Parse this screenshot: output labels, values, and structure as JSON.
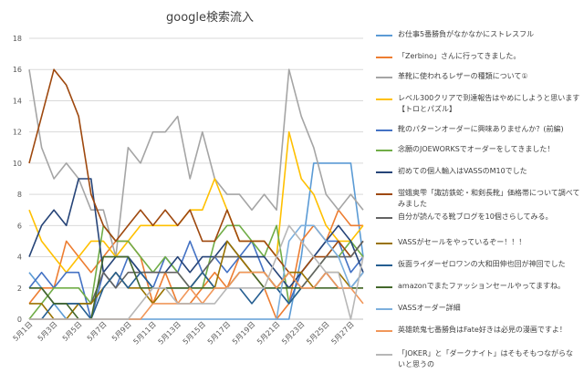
{
  "chart_data": {
    "type": "line",
    "title": "google検索流入",
    "xlabel": "",
    "ylabel": "",
    "ylim": [
      0,
      18
    ],
    "yticks": [
      0,
      2,
      4,
      6,
      8,
      10,
      12,
      14,
      16,
      18
    ],
    "grid": true,
    "legend_position": "right",
    "categories": [
      "5月1日",
      "5月2日",
      "5月3日",
      "5月4日",
      "5月5日",
      "5月6日",
      "5月7日",
      "5月8日",
      "5月9日",
      "5月10日",
      "5月11日",
      "5月12日",
      "5月13日",
      "5月14日",
      "5月15日",
      "5月16日",
      "5月17日",
      "5月18日",
      "5月19日",
      "5月20日",
      "5月21日",
      "5月22日",
      "5月23日",
      "5月24日",
      "5月25日",
      "5月26日",
      "5月27日",
      "5月28日"
    ],
    "x_tick_labels": [
      "5月1日",
      "5月3日",
      "5月5日",
      "5月7日",
      "5月9日",
      "5月11日",
      "5月13日",
      "5月15日",
      "5月17日",
      "5月19日",
      "5月21日",
      "5月23日",
      "5月25日",
      "5月27日"
    ],
    "x_tick_every": 2,
    "series": [
      {
        "name": "お仕事5番勝負がなかなかにストレスフル",
        "color": "#5b9bd5",
        "values": [
          3,
          2,
          1,
          0,
          0,
          0,
          0,
          0,
          0,
          0,
          0,
          0,
          0,
          0,
          0,
          0,
          0,
          0,
          0,
          0,
          0,
          0,
          4,
          10,
          10,
          10,
          10,
          4
        ]
      },
      {
        "name": "「Zerbino」さんに行ってきました。",
        "color": "#ed7d31",
        "values": [
          1,
          2,
          2,
          5,
          4,
          3,
          4,
          5,
          5,
          4,
          1,
          3,
          1,
          1,
          2,
          3,
          2,
          4,
          3,
          2,
          0,
          1,
          5,
          6,
          5,
          7,
          6,
          6
        ]
      },
      {
        "name": "革靴に使われるレザーの種類について①",
        "color": "#a5a5a5",
        "values": [
          16,
          11,
          9,
          10,
          9,
          7,
          7,
          4,
          11,
          10,
          12,
          12,
          13,
          9,
          12,
          9,
          8,
          8,
          7,
          8,
          7,
          16,
          13,
          11,
          8,
          7,
          8,
          7
        ]
      },
      {
        "name": "レベル300クリアで到達報告はやめにしようと思います【トロとパズル】",
        "color": "#ffc000",
        "values": [
          7,
          5,
          4,
          3,
          4,
          5,
          5,
          4,
          5,
          6,
          6,
          6,
          6,
          7,
          7,
          9,
          7,
          5,
          5,
          5,
          4,
          12,
          9,
          8,
          6,
          5,
          5,
          6
        ]
      },
      {
        "name": "靴のパターンオーダーに興味ありませんか？(前編)",
        "color": "#4472c4",
        "values": [
          2,
          3,
          2,
          3,
          3,
          0,
          3,
          2,
          4,
          3,
          2,
          4,
          3,
          5,
          3,
          4,
          3,
          4,
          5,
          3,
          2,
          1,
          3,
          4,
          5,
          5,
          3,
          4
        ]
      },
      {
        "name": "念願のJOEWORKSでオーダーをしてきました！",
        "color": "#70ad47",
        "values": [
          0,
          1,
          2,
          2,
          2,
          1,
          6,
          5,
          5,
          4,
          3,
          4,
          3,
          2,
          2,
          5,
          6,
          6,
          5,
          4,
          6,
          1,
          2,
          3,
          4,
          4,
          5,
          4
        ]
      },
      {
        "name": "初めての個人輸入はVASSのM10でした",
        "color": "#264478",
        "values": [
          4,
          6,
          7,
          6,
          9,
          9,
          3,
          4,
          4,
          3,
          3,
          3,
          4,
          3,
          4,
          4,
          5,
          4,
          4,
          4,
          3,
          2,
          3,
          4,
          5,
          6,
          5,
          3
        ]
      },
      {
        "name": "蛍蛾奥雫「諏訪鉄蛇・和剣長靴」価格帯について調べてみました",
        "color": "#9e480e",
        "values": [
          10,
          13,
          16,
          15,
          13,
          8,
          6,
          5,
          6,
          7,
          6,
          7,
          6,
          7,
          5,
          5,
          7,
          5,
          5,
          5,
          4,
          3,
          3,
          4,
          4,
          5,
          4,
          5
        ]
      },
      {
        "name": "自分が読んでる靴ブログを10個さらしてみる。",
        "color": "#636363",
        "values": [
          2,
          2,
          1,
          1,
          1,
          1,
          3,
          2,
          3,
          3,
          3,
          3,
          3,
          2,
          3,
          4,
          4,
          4,
          3,
          3,
          2,
          3,
          2,
          3,
          4,
          4,
          4,
          5
        ]
      },
      {
        "name": "VASSがセールをやっているぞー！！！",
        "color": "#997300",
        "values": [
          1,
          1,
          0,
          0,
          1,
          1,
          2,
          3,
          2,
          2,
          1,
          2,
          2,
          2,
          3,
          2,
          5,
          4,
          3,
          3,
          2,
          3,
          3,
          2,
          3,
          3,
          2,
          2
        ]
      },
      {
        "name": "仮面ライダーゼロワンの大和田伸也回が神回でした",
        "color": "#255e91",
        "values": [
          0,
          0,
          1,
          1,
          1,
          0,
          2,
          3,
          2,
          3,
          2,
          2,
          2,
          2,
          3,
          2,
          2,
          2,
          1,
          2,
          2,
          1,
          2,
          2,
          3,
          2,
          2,
          3
        ]
      },
      {
        "name": "amazonでまたファッションセールやってますね。",
        "color": "#43682b",
        "values": [
          2,
          2,
          1,
          1,
          0,
          0,
          4,
          4,
          4,
          2,
          2,
          2,
          2,
          2,
          2,
          2,
          2,
          3,
          3,
          2,
          2,
          2,
          2,
          2,
          2,
          2,
          2,
          2
        ]
      },
      {
        "name": "VASSオーダー詳細",
        "color": "#7cafdd",
        "values": [
          0,
          0,
          0,
          0,
          0,
          0,
          0,
          0,
          0,
          0,
          0,
          0,
          0,
          0,
          0,
          0,
          0,
          0,
          0,
          0,
          0,
          5,
          6,
          6,
          5,
          4,
          2,
          3
        ]
      },
      {
        "name": "英雄銃鬼七番勝負はFate好きは必見の漫画ですよ！",
        "color": "#f1975a",
        "values": [
          0,
          0,
          0,
          0,
          0,
          0,
          0,
          0,
          0,
          0,
          1,
          1,
          1,
          2,
          1,
          2,
          2,
          3,
          3,
          3,
          2,
          3,
          2,
          2,
          3,
          2,
          2,
          1
        ]
      },
      {
        "name": "「JOKER」と「ダークナイト」はそもそもつながらないと思うの",
        "color": "#b7b7b7",
        "values": [
          0,
          0,
          0,
          0,
          0,
          0,
          0,
          0,
          0,
          1,
          2,
          2,
          1,
          1,
          1,
          1,
          2,
          2,
          2,
          2,
          4,
          6,
          5,
          4,
          3,
          3,
          0,
          4
        ]
      }
    ]
  }
}
